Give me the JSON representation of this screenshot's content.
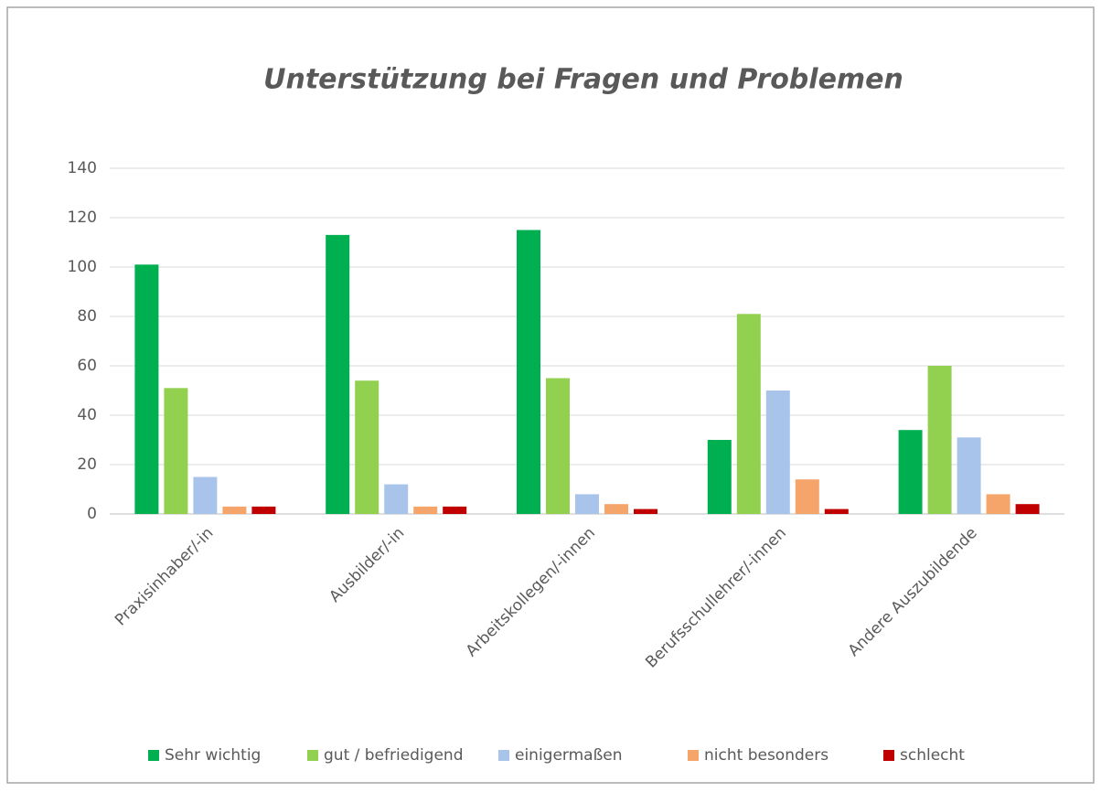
{
  "chart_data": {
    "type": "bar",
    "title": "Unterstützung bei Fragen und Problemen",
    "categories": [
      "Praxisinhaber/-in",
      "Ausbilder/-in",
      "Arbeitskollegen/-innen",
      "Berufsschullehrer/-innen",
      "Andere Auszubildende"
    ],
    "series": [
      {
        "name": "Sehr wichtig",
        "color": "#00b050",
        "values": [
          101,
          113,
          115,
          30,
          34
        ]
      },
      {
        "name": "gut / befriedigend",
        "color": "#92d050",
        "values": [
          51,
          54,
          55,
          81,
          60
        ]
      },
      {
        "name": "einigermaßen",
        "color": "#a9c4eb",
        "values": [
          15,
          12,
          8,
          50,
          31
        ]
      },
      {
        "name": "nicht besonders",
        "color": "#f6a56a",
        "values": [
          3,
          3,
          4,
          14,
          8
        ]
      },
      {
        "name": "schlecht",
        "color": "#c00000",
        "values": [
          3,
          3,
          2,
          2,
          4
        ]
      }
    ],
    "ylim": [
      0,
      140
    ],
    "yticks": [
      0,
      20,
      40,
      60,
      80,
      100,
      120,
      140
    ],
    "grid": true,
    "legend": "bottom"
  }
}
